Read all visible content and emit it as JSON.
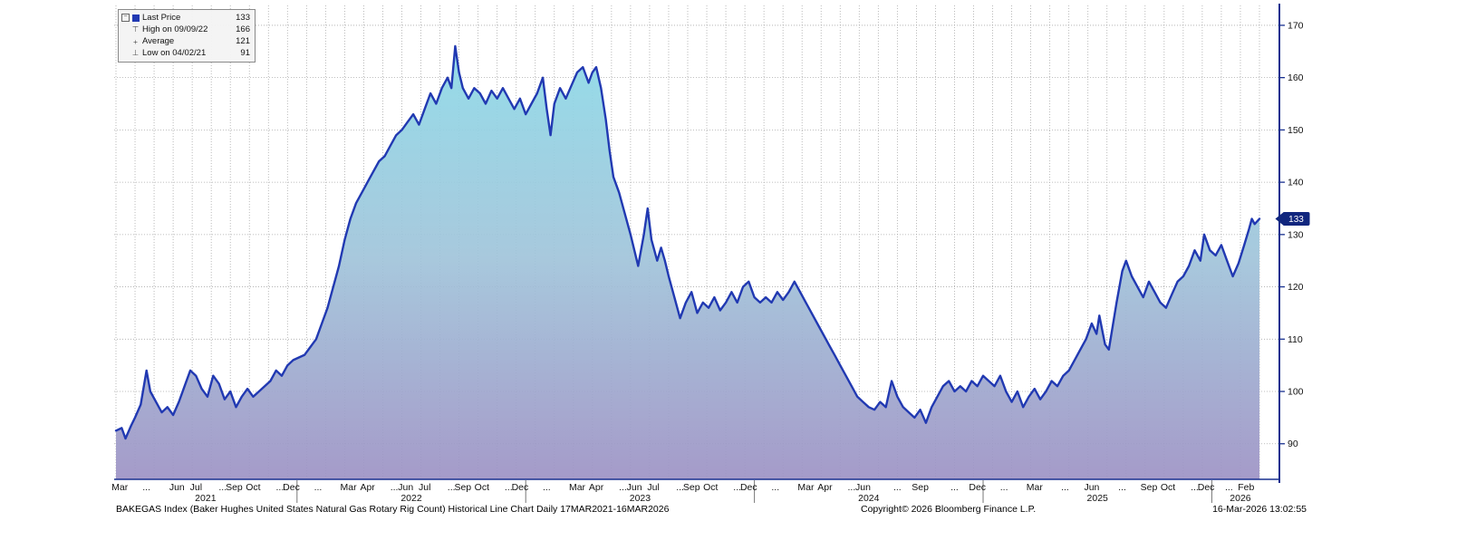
{
  "chart_data": {
    "type": "area",
    "title": "BAKEGAS Index (Baker Hughes United States Natural Gas Rotary Rig Count) Historical Line Chart Daily 17MAR2021-16MAR2026",
    "last_price": 133,
    "high": {
      "date": "09/09/22",
      "value": 166
    },
    "average": 121,
    "low": {
      "date": "04/02/21",
      "value": 91
    },
    "ylim": [
      83.2,
      173.8
    ],
    "y_ticks": [
      90,
      100,
      110,
      120,
      130,
      140,
      150,
      160,
      170
    ],
    "x_range_months": [
      0,
      60
    ],
    "x_month_ticks": [
      {
        "l": "Mar",
        "m": 0.2
      },
      {
        "l": "...",
        "m": 1.6
      },
      {
        "l": "Jun",
        "m": 3.2
      },
      {
        "l": "Jul",
        "m": 4.2
      },
      {
        "l": "...",
        "m": 5.6
      },
      {
        "l": "Sep",
        "m": 6.2
      },
      {
        "l": "Oct",
        "m": 7.2
      },
      {
        "l": "...",
        "m": 8.6
      },
      {
        "l": "Dec",
        "m": 9.2
      },
      {
        "l": "...",
        "m": 10.6
      },
      {
        "l": "Mar",
        "m": 12.2
      },
      {
        "l": "Apr",
        "m": 13.2
      },
      {
        "l": "...",
        "m": 14.6
      },
      {
        "l": "Jun",
        "m": 15.2
      },
      {
        "l": "Jul",
        "m": 16.2
      },
      {
        "l": "...",
        "m": 17.6
      },
      {
        "l": "Sep",
        "m": 18.2
      },
      {
        "l": "Oct",
        "m": 19.2
      },
      {
        "l": "...",
        "m": 20.6
      },
      {
        "l": "Dec",
        "m": 21.2
      },
      {
        "l": "...",
        "m": 22.6
      },
      {
        "l": "Mar",
        "m": 24.2
      },
      {
        "l": "Apr",
        "m": 25.2
      },
      {
        "l": "...",
        "m": 26.6
      },
      {
        "l": "Jun",
        "m": 27.2
      },
      {
        "l": "Jul",
        "m": 28.2
      },
      {
        "l": "...",
        "m": 29.6
      },
      {
        "l": "Sep",
        "m": 30.2
      },
      {
        "l": "Oct",
        "m": 31.2
      },
      {
        "l": "...",
        "m": 32.6
      },
      {
        "l": "Dec",
        "m": 33.2
      },
      {
        "l": "...",
        "m": 34.6
      },
      {
        "l": "Mar",
        "m": 36.2
      },
      {
        "l": "Apr",
        "m": 37.2
      },
      {
        "l": "...",
        "m": 38.6
      },
      {
        "l": "Jun",
        "m": 39.2
      },
      {
        "l": "...",
        "m": 41.0
      },
      {
        "l": "Sep",
        "m": 42.2
      },
      {
        "l": "...",
        "m": 44.0
      },
      {
        "l": "Dec",
        "m": 45.2
      },
      {
        "l": "...",
        "m": 46.6
      },
      {
        "l": "Mar",
        "m": 48.2
      },
      {
        "l": "...",
        "m": 49.8
      },
      {
        "l": "Jun",
        "m": 51.2
      },
      {
        "l": "...",
        "m": 52.8
      },
      {
        "l": "Sep",
        "m": 54.2
      },
      {
        "l": "Oct",
        "m": 55.2
      },
      {
        "l": "...",
        "m": 56.6
      },
      {
        "l": "Dec",
        "m": 57.2
      },
      {
        "l": "...",
        "m": 58.4
      },
      {
        "l": "Feb",
        "m": 59.3
      }
    ],
    "x_year_ticks": [
      {
        "l": "2021",
        "m": 4.7
      },
      {
        "l": "2022",
        "m": 15.5
      },
      {
        "l": "2023",
        "m": 27.5
      },
      {
        "l": "2024",
        "m": 39.5
      },
      {
        "l": "2025",
        "m": 51.5
      },
      {
        "l": "2026",
        "m": 59.0
      }
    ],
    "year_boundaries_m": [
      9.5,
      21.5,
      33.5,
      45.5,
      57.5
    ],
    "points": [
      [
        0.0,
        92.5
      ],
      [
        0.3,
        93
      ],
      [
        0.5,
        91
      ],
      [
        0.8,
        93.5
      ],
      [
        1.0,
        95
      ],
      [
        1.3,
        97.5
      ],
      [
        1.6,
        104
      ],
      [
        1.8,
        100
      ],
      [
        2.1,
        98
      ],
      [
        2.4,
        96
      ],
      [
        2.7,
        97
      ],
      [
        3.0,
        95.5
      ],
      [
        3.3,
        98
      ],
      [
        3.6,
        101
      ],
      [
        3.9,
        104
      ],
      [
        4.2,
        103
      ],
      [
        4.5,
        100.5
      ],
      [
        4.8,
        99
      ],
      [
        5.1,
        103
      ],
      [
        5.4,
        101.5
      ],
      [
        5.7,
        98.5
      ],
      [
        6.0,
        100
      ],
      [
        6.3,
        97
      ],
      [
        6.6,
        99
      ],
      [
        6.9,
        100.5
      ],
      [
        7.2,
        99
      ],
      [
        7.5,
        100
      ],
      [
        7.8,
        101
      ],
      [
        8.1,
        102
      ],
      [
        8.4,
        104
      ],
      [
        8.7,
        103
      ],
      [
        9.0,
        105
      ],
      [
        9.3,
        106
      ],
      [
        9.6,
        106.5
      ],
      [
        9.9,
        107
      ],
      [
        10.2,
        108.5
      ],
      [
        10.5,
        110
      ],
      [
        10.8,
        113
      ],
      [
        11.1,
        116
      ],
      [
        11.4,
        120
      ],
      [
        11.7,
        124
      ],
      [
        12.0,
        129
      ],
      [
        12.3,
        133
      ],
      [
        12.6,
        136
      ],
      [
        12.9,
        138
      ],
      [
        13.2,
        140
      ],
      [
        13.5,
        142
      ],
      [
        13.8,
        144
      ],
      [
        14.1,
        145
      ],
      [
        14.4,
        147
      ],
      [
        14.7,
        149
      ],
      [
        15.0,
        150
      ],
      [
        15.3,
        151.5
      ],
      [
        15.6,
        153
      ],
      [
        15.9,
        151
      ],
      [
        16.2,
        154
      ],
      [
        16.5,
        157
      ],
      [
        16.8,
        155
      ],
      [
        17.1,
        158
      ],
      [
        17.4,
        160
      ],
      [
        17.6,
        158
      ],
      [
        17.8,
        166
      ],
      [
        18.0,
        161
      ],
      [
        18.2,
        158
      ],
      [
        18.5,
        156
      ],
      [
        18.8,
        158
      ],
      [
        19.1,
        157
      ],
      [
        19.4,
        155
      ],
      [
        19.7,
        157.5
      ],
      [
        20.0,
        156
      ],
      [
        20.3,
        158
      ],
      [
        20.6,
        156
      ],
      [
        20.9,
        154
      ],
      [
        21.2,
        156
      ],
      [
        21.5,
        153
      ],
      [
        21.8,
        155
      ],
      [
        22.1,
        157
      ],
      [
        22.4,
        160
      ],
      [
        22.6,
        154
      ],
      [
        22.8,
        149
      ],
      [
        23.0,
        155
      ],
      [
        23.3,
        158
      ],
      [
        23.6,
        156
      ],
      [
        23.9,
        158.5
      ],
      [
        24.2,
        161
      ],
      [
        24.5,
        162
      ],
      [
        24.8,
        159
      ],
      [
        25.0,
        161
      ],
      [
        25.2,
        162
      ],
      [
        25.45,
        158
      ],
      [
        25.7,
        152
      ],
      [
        25.9,
        146
      ],
      [
        26.1,
        141
      ],
      [
        26.4,
        138
      ],
      [
        26.7,
        134
      ],
      [
        27.0,
        130
      ],
      [
        27.2,
        127
      ],
      [
        27.4,
        124
      ],
      [
        27.7,
        130
      ],
      [
        27.9,
        135
      ],
      [
        28.1,
        129
      ],
      [
        28.4,
        125
      ],
      [
        28.6,
        127.5
      ],
      [
        28.8,
        125
      ],
      [
        29.0,
        122
      ],
      [
        29.3,
        118
      ],
      [
        29.6,
        114
      ],
      [
        29.9,
        117
      ],
      [
        30.2,
        119
      ],
      [
        30.5,
        115
      ],
      [
        30.8,
        117
      ],
      [
        31.1,
        116
      ],
      [
        31.4,
        118
      ],
      [
        31.7,
        115.5
      ],
      [
        32.0,
        117
      ],
      [
        32.3,
        119
      ],
      [
        32.6,
        117
      ],
      [
        32.9,
        120
      ],
      [
        33.2,
        121
      ],
      [
        33.5,
        118
      ],
      [
        33.8,
        117
      ],
      [
        34.1,
        118
      ],
      [
        34.4,
        117
      ],
      [
        34.7,
        119
      ],
      [
        35.0,
        117.5
      ],
      [
        35.3,
        119
      ],
      [
        35.6,
        121
      ],
      [
        35.9,
        119
      ],
      [
        36.2,
        117
      ],
      [
        36.5,
        115
      ],
      [
        36.8,
        113
      ],
      [
        37.1,
        111
      ],
      [
        37.4,
        109
      ],
      [
        37.7,
        107
      ],
      [
        38.0,
        105
      ],
      [
        38.3,
        103
      ],
      [
        38.6,
        101
      ],
      [
        38.9,
        99
      ],
      [
        39.2,
        98
      ],
      [
        39.5,
        97
      ],
      [
        39.8,
        96.5
      ],
      [
        40.1,
        98
      ],
      [
        40.4,
        97
      ],
      [
        40.7,
        102
      ],
      [
        41.0,
        99
      ],
      [
        41.3,
        97
      ],
      [
        41.6,
        96
      ],
      [
        41.9,
        95
      ],
      [
        42.2,
        96.5
      ],
      [
        42.5,
        94
      ],
      [
        42.8,
        97
      ],
      [
        43.1,
        99
      ],
      [
        43.4,
        101
      ],
      [
        43.7,
        102
      ],
      [
        44.0,
        100
      ],
      [
        44.3,
        101
      ],
      [
        44.6,
        100
      ],
      [
        44.9,
        102
      ],
      [
        45.2,
        101
      ],
      [
        45.5,
        103
      ],
      [
        45.8,
        102
      ],
      [
        46.1,
        101
      ],
      [
        46.4,
        103
      ],
      [
        46.7,
        100
      ],
      [
        47.0,
        98
      ],
      [
        47.3,
        100
      ],
      [
        47.6,
        97
      ],
      [
        47.9,
        99
      ],
      [
        48.2,
        100.5
      ],
      [
        48.5,
        98.5
      ],
      [
        48.8,
        100
      ],
      [
        49.1,
        102
      ],
      [
        49.4,
        101
      ],
      [
        49.7,
        103
      ],
      [
        50.0,
        104
      ],
      [
        50.3,
        106
      ],
      [
        50.6,
        108
      ],
      [
        50.9,
        110
      ],
      [
        51.2,
        113
      ],
      [
        51.45,
        111
      ],
      [
        51.6,
        114.5
      ],
      [
        51.9,
        109
      ],
      [
        52.1,
        108
      ],
      [
        52.5,
        117
      ],
      [
        52.8,
        123
      ],
      [
        53.0,
        125
      ],
      [
        53.3,
        122
      ],
      [
        53.6,
        120
      ],
      [
        53.9,
        118
      ],
      [
        54.2,
        121
      ],
      [
        54.5,
        119
      ],
      [
        54.8,
        117
      ],
      [
        55.1,
        116
      ],
      [
        55.4,
        118.5
      ],
      [
        55.7,
        121
      ],
      [
        56.0,
        122
      ],
      [
        56.3,
        124
      ],
      [
        56.6,
        127
      ],
      [
        56.9,
        125
      ],
      [
        57.1,
        130
      ],
      [
        57.4,
        127
      ],
      [
        57.7,
        126
      ],
      [
        58.0,
        128
      ],
      [
        58.3,
        125
      ],
      [
        58.6,
        122
      ],
      [
        58.9,
        124.5
      ],
      [
        59.2,
        128
      ],
      [
        59.45,
        131
      ],
      [
        59.6,
        133
      ],
      [
        59.75,
        132
      ],
      [
        60.0,
        133
      ]
    ],
    "colors": {
      "line": "#2139b2",
      "fill_top": "#8edce9",
      "fill_mid": "#a0c4da",
      "fill_bottom": "#9e93c5",
      "axis": "#18308f",
      "badge_bg": "#10267e",
      "badge_text": "#ffffff",
      "grid": "#aaaaaa",
      "tick_text": "#111111"
    },
    "legend_position": "top-left",
    "grid": "dotted"
  },
  "legend": {
    "rows": [
      {
        "marker": "swatch",
        "label": "Last Price",
        "value": "133"
      },
      {
        "marker": "high",
        "label": "High on 09/09/22",
        "value": "166"
      },
      {
        "marker": "average",
        "label": "Average",
        "value": "121"
      },
      {
        "marker": "low",
        "label": "Low on 04/02/21",
        "value": "91"
      }
    ],
    "glyphs": {
      "collapse": "−",
      "high": "⊤",
      "average": "+",
      "low": "⊥"
    }
  },
  "badge": {
    "value": "133"
  },
  "footer": {
    "center": "Copyright© 2026 Bloomberg Finance L.P.",
    "right": "16-Mar-2026 13:02:55"
  }
}
